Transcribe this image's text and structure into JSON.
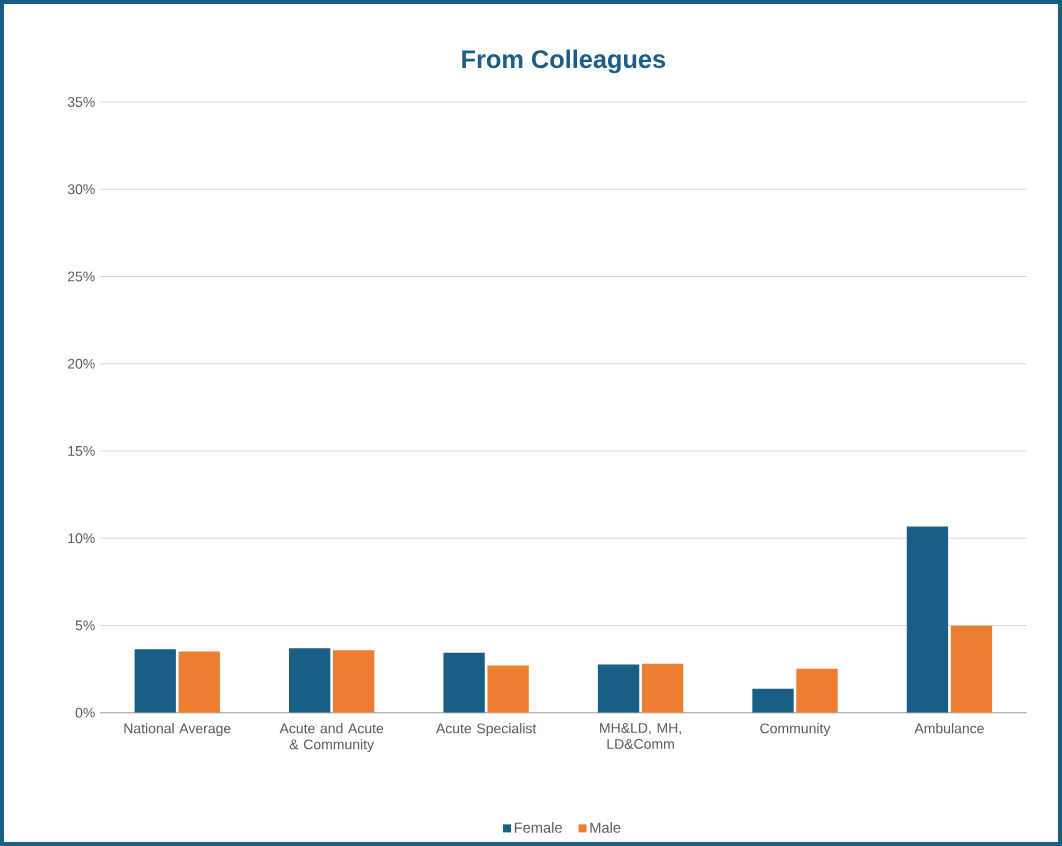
{
  "chart_data": {
    "type": "bar",
    "title": "From Colleagues",
    "categories": [
      "National Average",
      "Acute and Acute & Community",
      "Acute Specialist",
      "MH&LD, MH, LD&Comm",
      "Community",
      "Ambulance"
    ],
    "series": [
      {
        "name": "Female",
        "color": "#1a5e86",
        "values": [
          3.63,
          3.69,
          3.44,
          2.76,
          1.37,
          10.67
        ]
      },
      {
        "name": "Male",
        "color": "#ed7d31",
        "values": [
          3.5,
          3.58,
          2.71,
          2.81,
          2.51,
          4.98
        ]
      }
    ],
    "ylim": [
      0,
      35
    ],
    "yticks": [
      {
        "value": 0,
        "label": "0%"
      },
      {
        "value": 5,
        "label": "5%"
      },
      {
        "value": 10,
        "label": "10%"
      },
      {
        "value": 15,
        "label": "15%"
      },
      {
        "value": 20,
        "label": "20%"
      },
      {
        "value": 25,
        "label": "25%"
      },
      {
        "value": 30,
        "label": "30%"
      },
      {
        "value": 35,
        "label": "35%"
      }
    ],
    "grid": "y",
    "legend": "bottom"
  }
}
